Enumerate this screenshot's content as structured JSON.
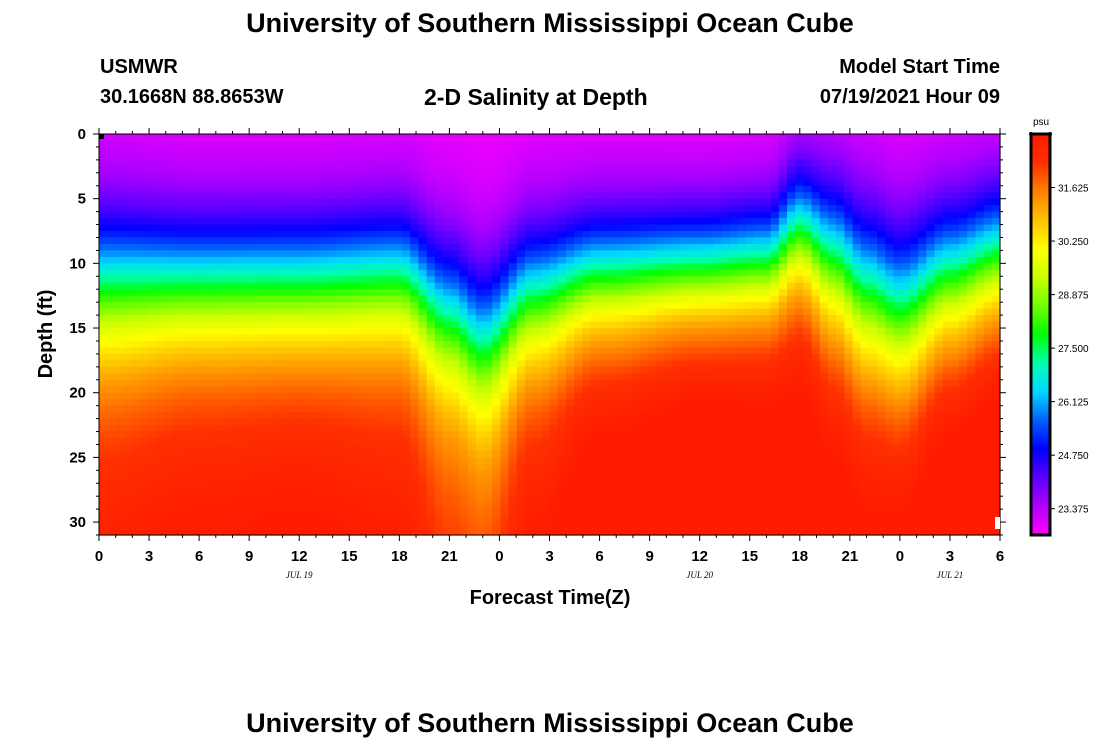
{
  "header": {
    "title_top": "University of Southern Mississippi Ocean Cube",
    "title_bottom": "University of Southern Mississippi Ocean Cube",
    "station": "USMWR",
    "coordinates": "30.1668N  88.8653W",
    "subtitle": "2-D Salinity at Depth",
    "model_start_label": "Model Start Time",
    "model_start_value": "07/19/2021 Hour 09"
  },
  "chart_data": {
    "type": "heatmap",
    "title": "2-D Salinity at Depth",
    "xlabel": "Forecast Time(Z)",
    "ylabel": "Depth (ft)",
    "x_range_hours": [
      0,
      54
    ],
    "y_range_ft": [
      0,
      31
    ],
    "x_tick_labels": [
      "0",
      "3",
      "6",
      "9",
      "12",
      "15",
      "18",
      "21",
      "0",
      "3",
      "6",
      "9",
      "12",
      "15",
      "18",
      "21",
      "0",
      "3",
      "6"
    ],
    "y_tick_labels": [
      "0",
      "5",
      "10",
      "15",
      "20",
      "25",
      "30"
    ],
    "y_ticks": [
      0,
      5,
      10,
      15,
      20,
      25,
      30
    ],
    "day_labels": [
      {
        "text": "JUL 19",
        "hour": 12
      },
      {
        "text": "JUL 20",
        "hour": 36
      },
      {
        "text": "JUL 21",
        "hour": 51
      }
    ],
    "colorbar": {
      "unit": "psu",
      "range": [
        22.7,
        33.0
      ],
      "tick_values": [
        "31.625",
        "30.250",
        "28.875",
        "27.500",
        "26.125",
        "24.750",
        "23.375"
      ],
      "colors": [
        "#ff00ff",
        "#b000ff",
        "#5a00ff",
        "#0000ff",
        "#0060ff",
        "#00d8ff",
        "#00ffb0",
        "#00ff00",
        "#70ff00",
        "#ccff00",
        "#ffff00",
        "#ffc000",
        "#ff8000",
        "#ff3000",
        "#ff1a00"
      ]
    },
    "field_model": {
      "surface_salinity": 22.8,
      "bottom_salinity": 32.8,
      "profile": [
        {
          "hour": 0,
          "halocline_ft": 11.5,
          "width_ft": 3.5,
          "bottom_salinity": 32.0
        },
        {
          "hour": 6,
          "halocline_ft": 11.5,
          "width_ft": 3.2,
          "bottom_salinity": 32.2
        },
        {
          "hour": 12,
          "halocline_ft": 11.5,
          "width_ft": 3.2,
          "bottom_salinity": 32.3
        },
        {
          "hour": 18,
          "halocline_ft": 11.0,
          "width_ft": 3.2,
          "bottom_salinity": 32.1
        },
        {
          "hour": 21,
          "halocline_ft": 14.0,
          "width_ft": 3.5,
          "bottom_salinity": 31.6
        },
        {
          "hour": 23,
          "halocline_ft": 16.0,
          "width_ft": 3.6,
          "bottom_salinity": 31.5
        },
        {
          "hour": 26,
          "halocline_ft": 12.5,
          "width_ft": 3.3,
          "bottom_salinity": 32.2
        },
        {
          "hour": 30,
          "halocline_ft": 11.0,
          "width_ft": 3.0,
          "bottom_salinity": 32.7
        },
        {
          "hour": 36,
          "halocline_ft": 10.5,
          "width_ft": 2.8,
          "bottom_salinity": 32.9
        },
        {
          "hour": 40,
          "halocline_ft": 10.0,
          "width_ft": 2.8,
          "bottom_salinity": 32.8
        },
        {
          "hour": 42,
          "halocline_ft": 7.5,
          "width_ft": 3.0,
          "bottom_salinity": 32.7
        },
        {
          "hour": 44,
          "halocline_ft": 9.5,
          "width_ft": 3.5,
          "bottom_salinity": 32.5
        },
        {
          "hour": 46,
          "halocline_ft": 12.0,
          "width_ft": 3.8,
          "bottom_salinity": 32.4
        },
        {
          "hour": 48,
          "halocline_ft": 13.5,
          "width_ft": 3.8,
          "bottom_salinity": 32.5
        },
        {
          "hour": 51,
          "halocline_ft": 11.0,
          "width_ft": 3.4,
          "bottom_salinity": 32.8
        },
        {
          "hour": 54,
          "halocline_ft": 9.5,
          "width_ft": 3.2,
          "bottom_salinity": 33.0
        }
      ]
    }
  }
}
